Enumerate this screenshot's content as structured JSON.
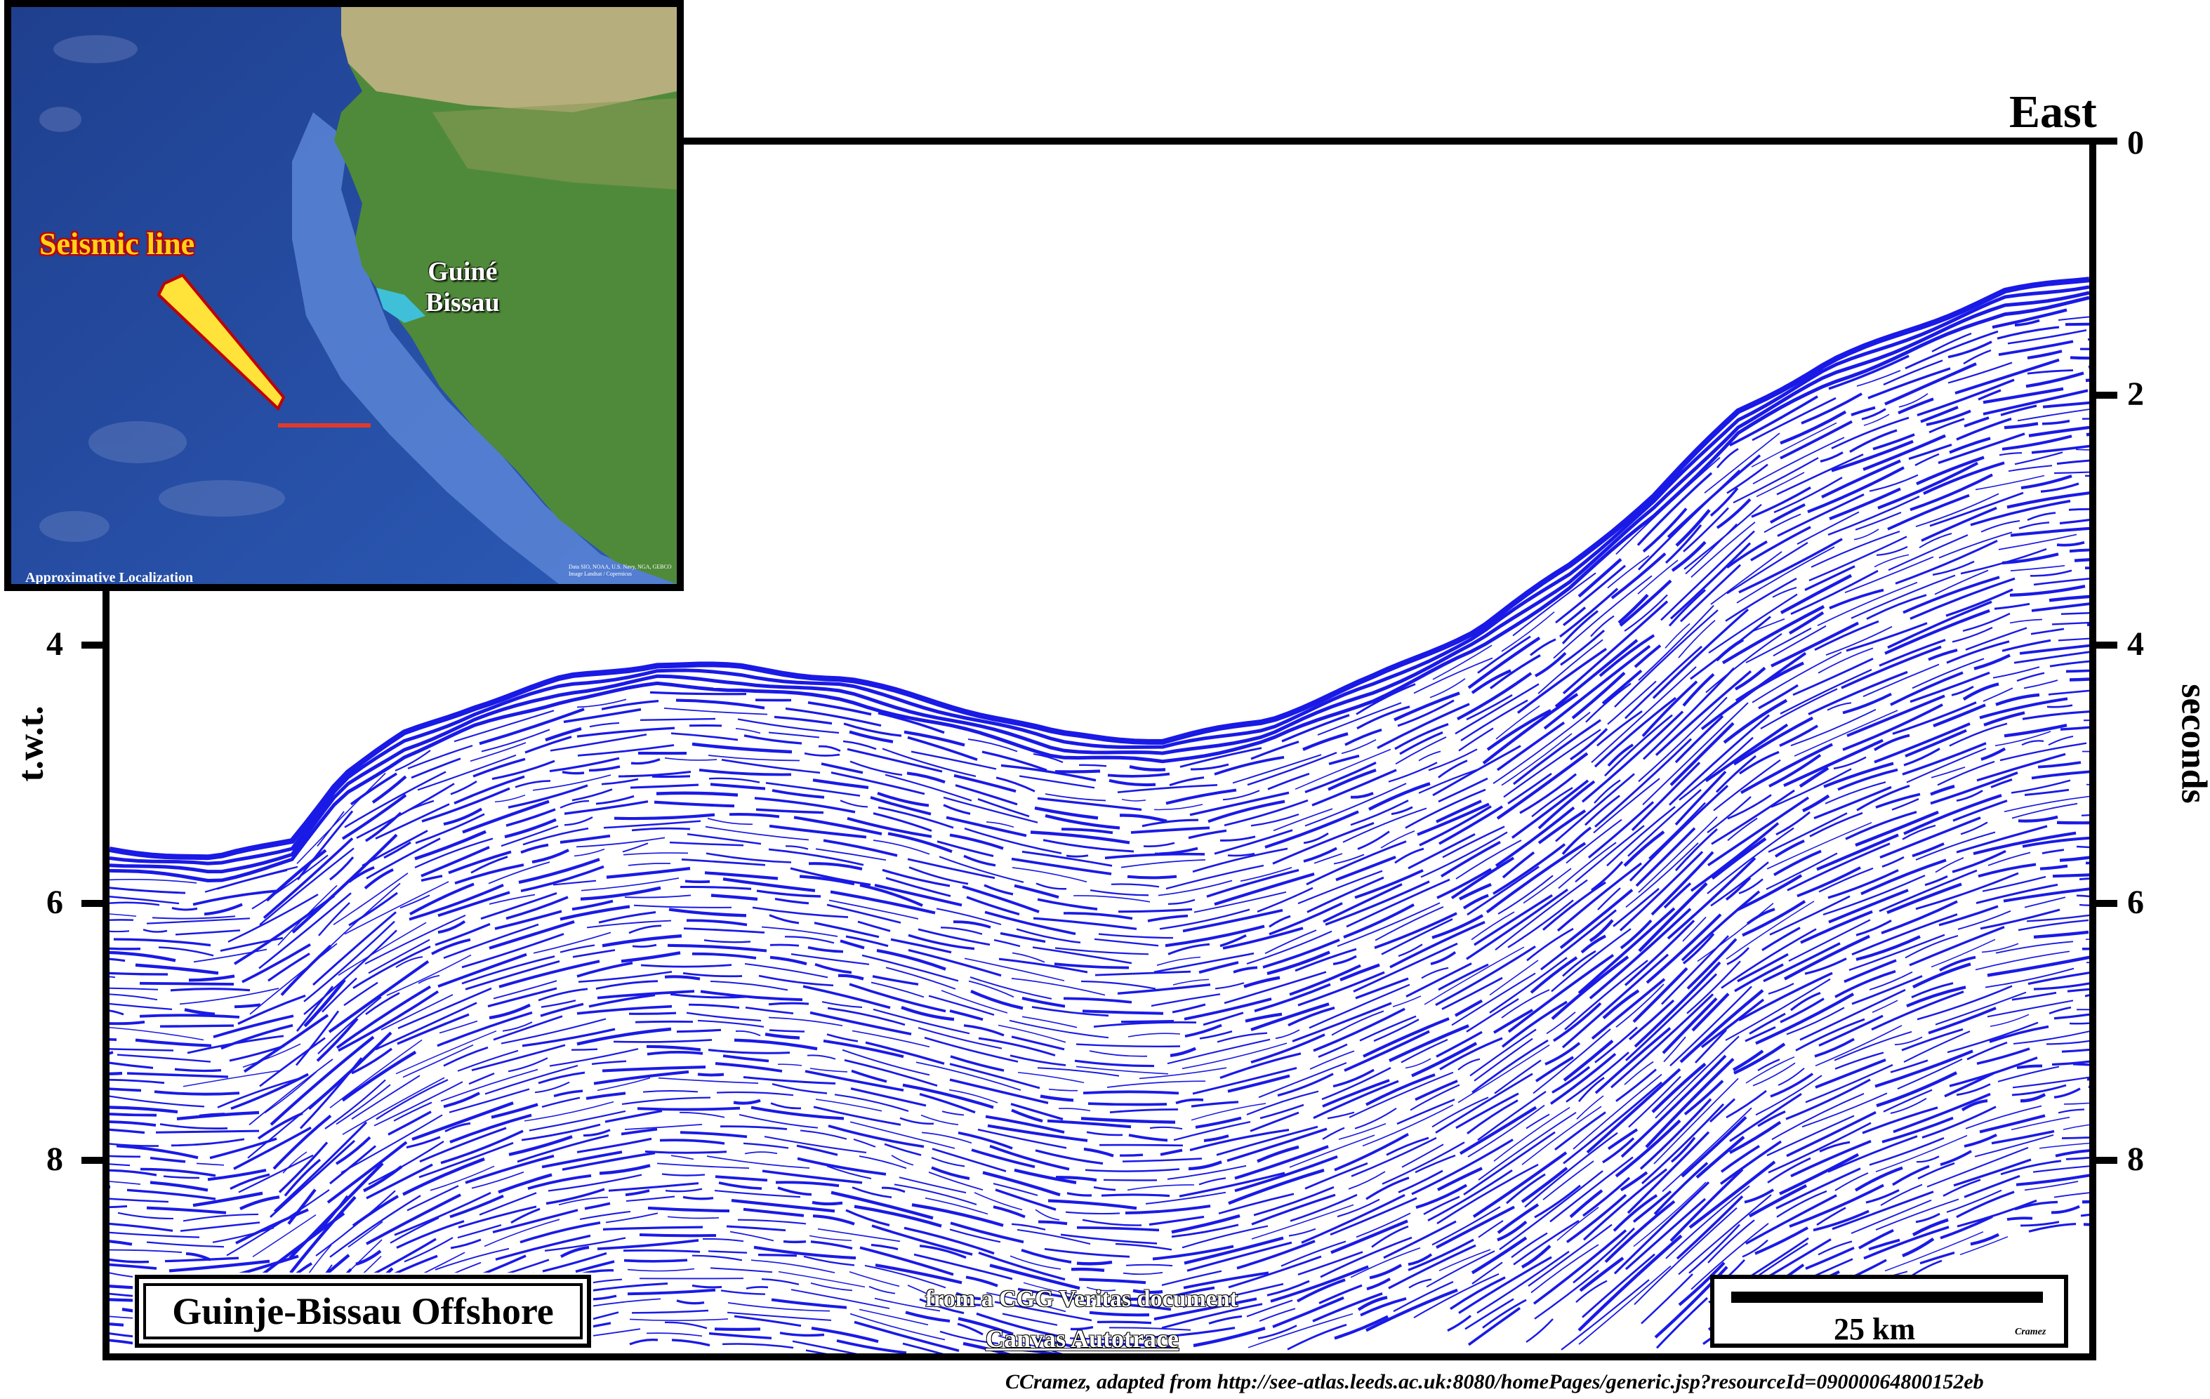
{
  "section": {
    "direction_label": "East",
    "left_axis_title": "t.w.t.",
    "right_axis_title": "seconds",
    "left_ticks": [
      "4",
      "6",
      "8"
    ],
    "right_ticks": [
      "0",
      "2",
      "4",
      "6",
      "8"
    ],
    "title": "Guinje-Bissau Offshore",
    "source_note": "from a CGG Veritas document",
    "autotrace_note": "Canvas Autotrace",
    "scale_label": "25 km",
    "scale_author": "Cramez",
    "credit": "CCramez, adapted from  http://see-atlas.leeds.ac.uk:8080/homePages/generic.jsp?resourceId=09000064800152eb",
    "reflector_color": "#1a1ae6"
  },
  "inset_map": {
    "seismic_line_label": "Seismic line",
    "country_label_line1": "Guiné",
    "country_label_line2": "Bissau",
    "approx_label": "Approximative Localization",
    "credit_line1": "Data SIO, NOAA, U.S. Navy, NGA, GEBCO",
    "credit_line2": "Image Landsat / Copernicus",
    "ocean_color": "#2a52a8",
    "land_color": "#4f8a3a",
    "line_color": "#e23a2a",
    "arrow_color": "#ffe23a"
  }
}
